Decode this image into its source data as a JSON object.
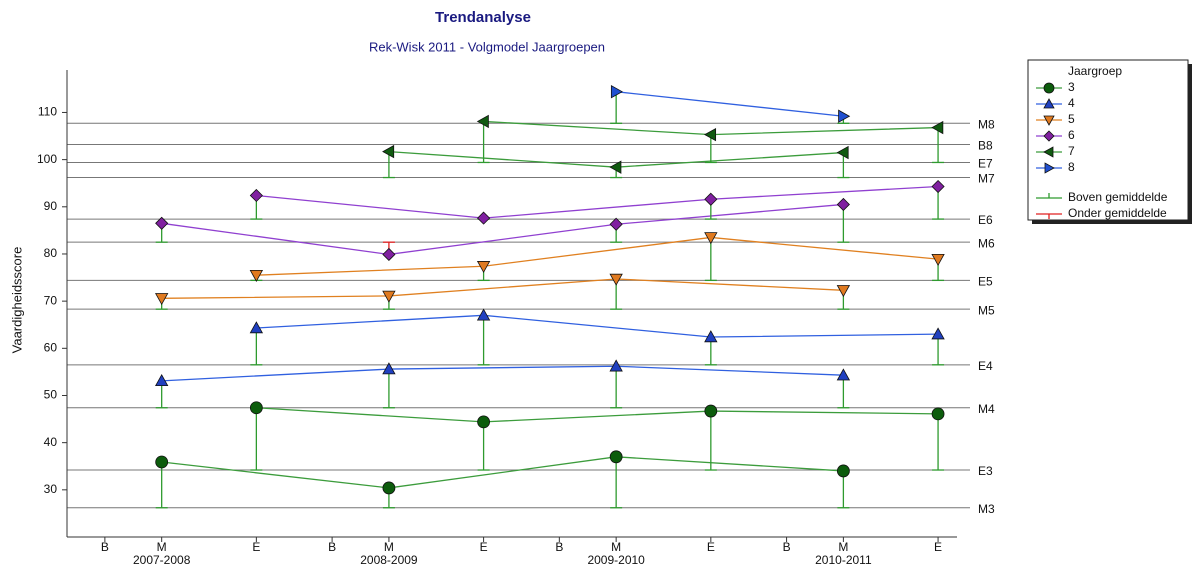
{
  "chart_data": {
    "type": "line",
    "title": "Trendanalyse",
    "subtitle": "Rek-Wisk 2011 - Volgmodel Jaargroepen",
    "y_label": "Vaardigheidsscore",
    "xlim": [
      -2,
      45
    ],
    "xticks": [
      {
        "value": 0,
        "label": "B"
      },
      {
        "value": 3,
        "label": "M"
      },
      {
        "value": 8,
        "label": "E"
      },
      {
        "value": 12,
        "label": "B"
      },
      {
        "value": 15,
        "label": "M"
      },
      {
        "value": 20,
        "label": "E"
      },
      {
        "value": 24,
        "label": "B"
      },
      {
        "value": 27,
        "label": "M"
      },
      {
        "value": 32,
        "label": "E"
      },
      {
        "value": 36,
        "label": "B"
      },
      {
        "value": 39,
        "label": "M"
      },
      {
        "value": 44,
        "label": "E"
      }
    ],
    "x_groups": [
      "2007-2008",
      "2008-2009",
      "2009-2010",
      "2010-2011"
    ],
    "ylim": [
      20,
      119
    ],
    "yticks": [
      30,
      40,
      50,
      60,
      70,
      80,
      90,
      100,
      110
    ],
    "reference_lines": [
      {
        "label": "M8",
        "value": 107.7
      },
      {
        "label": "B8",
        "value": 103.2
      },
      {
        "label": "E7",
        "value": 99.4
      },
      {
        "label": "M7",
        "value": 96.2
      },
      {
        "label": "E6",
        "value": 87.4
      },
      {
        "label": "M6",
        "value": 82.5
      },
      {
        "label": "E5",
        "value": 74.4
      },
      {
        "label": "M5",
        "value": 68.3
      },
      {
        "label": "E4",
        "value": 56.5
      },
      {
        "label": "M4",
        "value": 47.4
      },
      {
        "label": "E3",
        "value": 34.2
      },
      {
        "label": "M3",
        "value": 26.2
      }
    ],
    "legend_title": "Jaargroep",
    "legend_position": "right",
    "series": [
      {
        "name": "3",
        "color": "#3c9c3c",
        "marker_color": "#0c5c0c",
        "marker": "circle",
        "lines": [
          {
            "x": [
              3,
              15,
              27,
              39
            ],
            "values": [
              35.9,
              30.4,
              37.0,
              34.0
            ]
          },
          {
            "x": [
              8,
              20,
              32,
              44
            ],
            "values": [
              47.4,
              44.4,
              46.7,
              46.1
            ]
          }
        ]
      },
      {
        "name": "4",
        "color": "#3060e0",
        "marker_color": "#2040c0",
        "marker": "triangle-up",
        "lines": [
          {
            "x": [
              3,
              15,
              27,
              39
            ],
            "values": [
              53.1,
              55.6,
              56.2,
              54.3
            ]
          },
          {
            "x": [
              8,
              20,
              32,
              44
            ],
            "values": [
              64.3,
              67.0,
              62.4,
              63.0
            ]
          }
        ]
      },
      {
        "name": "5",
        "color": "#e08020",
        "marker_color": "#e07a20",
        "marker": "triangle-down",
        "lines": [
          {
            "x": [
              3,
              15,
              27,
              39
            ],
            "values": [
              70.6,
              71.1,
              74.7,
              72.3
            ]
          },
          {
            "x": [
              8,
              20,
              32,
              44
            ],
            "values": [
              75.5,
              77.4,
              83.5,
              78.9
            ]
          }
        ]
      },
      {
        "name": "6",
        "color": "#9040d0",
        "marker_color": "#8020a0",
        "marker": "diamond",
        "lines": [
          {
            "x": [
              3,
              15,
              27,
              39
            ],
            "values": [
              86.5,
              79.9,
              86.3,
              90.5
            ]
          },
          {
            "x": [
              8,
              20,
              32,
              44
            ],
            "values": [
              92.4,
              87.6,
              91.6,
              94.3
            ]
          }
        ]
      },
      {
        "name": "7",
        "color": "#3c9c3c",
        "marker_color": "#105a10",
        "marker": "triangle-left",
        "lines": [
          {
            "x": [
              15,
              27,
              39
            ],
            "values": [
              101.7,
              98.4,
              101.5
            ]
          },
          {
            "x": [
              20,
              32,
              44
            ],
            "values": [
              108.1,
              105.3,
              106.8
            ]
          }
        ]
      },
      {
        "name": "8",
        "color": "#3060e0",
        "marker_color": "#2050d0",
        "marker": "triangle-right",
        "lines": [
          {
            "x": [
              27,
              39
            ],
            "values": [
              114.4,
              109.2
            ]
          }
        ]
      }
    ],
    "bar_legend": [
      {
        "name": "Boven gemiddelde",
        "color": "#2e9a2e"
      },
      {
        "name": "Onder gemiddelde",
        "color": "#e02020"
      }
    ]
  }
}
